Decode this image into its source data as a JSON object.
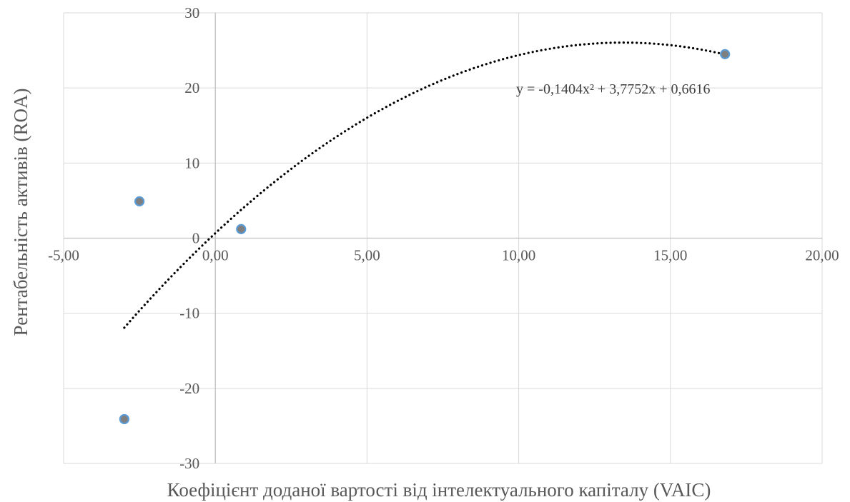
{
  "chart_data": {
    "type": "scatter",
    "title": "",
    "xlabel": "Коефіцієнт доданої вартості від інтелектуального капіталу (VAIC)",
    "ylabel": "Рентабельність активів (ROA)",
    "xlim": [
      -5,
      20
    ],
    "ylim": [
      -30,
      30
    ],
    "x_ticks": [
      -5,
      0,
      5,
      10,
      15,
      20
    ],
    "x_tick_labels": [
      "-5,00",
      "0,00",
      "5,00",
      "10,00",
      "15,00",
      "20,00"
    ],
    "y_ticks": [
      -30,
      -20,
      -10,
      0,
      10,
      20,
      30
    ],
    "y_tick_labels": [
      "-30",
      "-20",
      "-10",
      "0",
      "10",
      "20",
      "30"
    ],
    "grid": true,
    "legend": "none",
    "series": [
      {
        "points": [
          {
            "x": -3.0,
            "y": -24.1
          },
          {
            "x": -2.5,
            "y": 4.9
          },
          {
            "x": 0.85,
            "y": 1.2
          },
          {
            "x": 16.8,
            "y": 24.5
          }
        ],
        "marker_color": "#7f7f7f",
        "marker_edge_color": "#5b9bd5"
      }
    ],
    "trendline": {
      "type": "polynomial",
      "order": 2,
      "coefficients": [
        -0.1404,
        3.7752,
        0.6616
      ],
      "x_range": [
        -3.0,
        16.8
      ],
      "style": "dotted",
      "color": "#000000",
      "equation_label": "y = -0,1404x² + 3,7752x + 0,6616"
    },
    "colors": {
      "grid": "#d9d9d9",
      "axis_zero": "#bfbfbf",
      "text": "#595959"
    }
  }
}
